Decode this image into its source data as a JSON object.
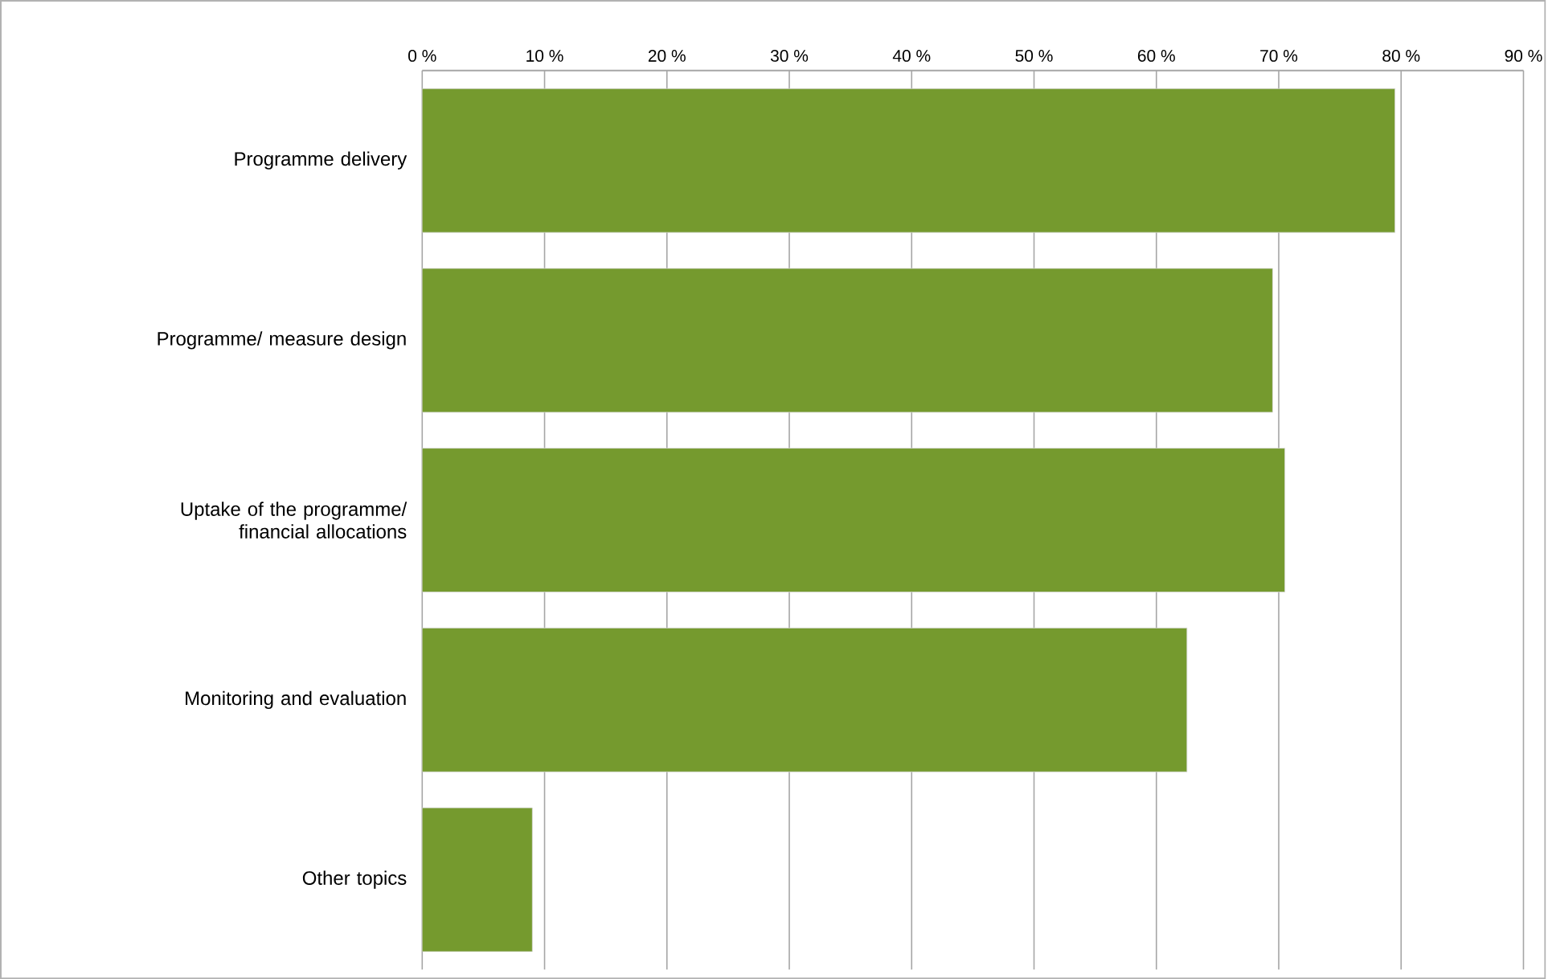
{
  "chart_data": {
    "type": "bar",
    "orientation": "horizontal",
    "categories": [
      "Programme delivery",
      "Programme/ measure design",
      "Uptake of the programme/ financial allocations",
      "Monitoring and evaluation",
      "Other topics"
    ],
    "values": [
      79.5,
      69.5,
      70.5,
      62.5,
      9
    ],
    "color": "#759a2e",
    "xlim": [
      0,
      90
    ],
    "xticks": [
      {
        "value": 0,
        "label": "0 %"
      },
      {
        "value": 10,
        "label": "10 %"
      },
      {
        "value": 20,
        "label": "20 %"
      },
      {
        "value": 30,
        "label": "30 %"
      },
      {
        "value": 40,
        "label": "40 %"
      },
      {
        "value": 50,
        "label": "50 %"
      },
      {
        "value": 60,
        "label": "60 %"
      },
      {
        "value": 70,
        "label": "70 %"
      },
      {
        "value": 80,
        "label": "80 %"
      },
      {
        "value": 90,
        "label": "90 %"
      }
    ],
    "grid": "x"
  }
}
